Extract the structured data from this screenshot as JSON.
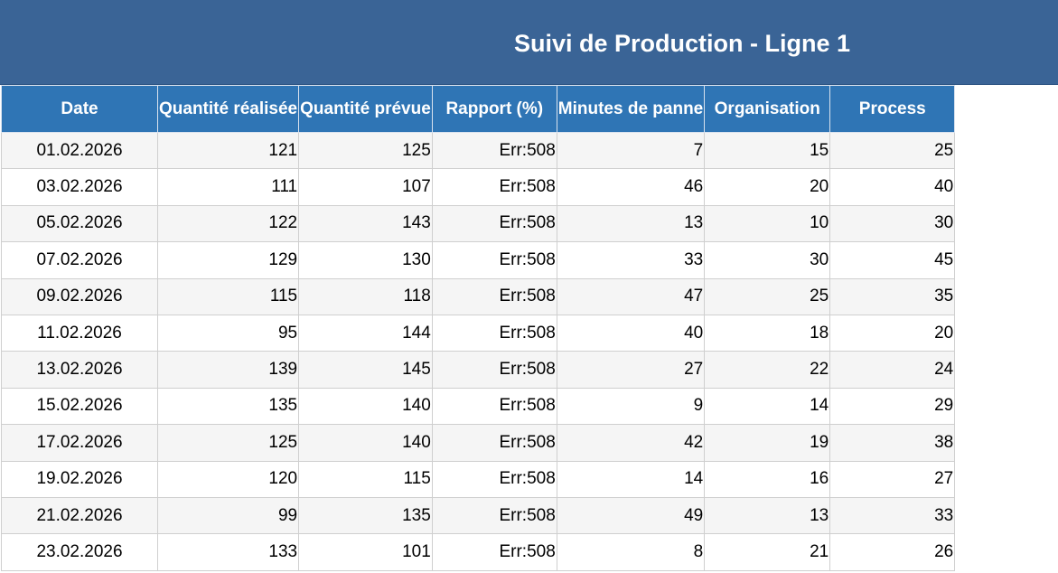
{
  "title": "Suivi de Production - Ligne 1",
  "columns": [
    "Date",
    "Quantité réalisée",
    "Quantité prévue",
    "Rapport (%)",
    "Minutes de panne",
    "Organisation",
    "Process"
  ],
  "rows": [
    [
      "01.02.2026",
      "121",
      "125",
      "Err:508",
      "7",
      "15",
      "25"
    ],
    [
      "03.02.2026",
      "111",
      "107",
      "Err:508",
      "46",
      "20",
      "40"
    ],
    [
      "05.02.2026",
      "122",
      "143",
      "Err:508",
      "13",
      "10",
      "30"
    ],
    [
      "07.02.2026",
      "129",
      "130",
      "Err:508",
      "33",
      "30",
      "45"
    ],
    [
      "09.02.2026",
      "115",
      "118",
      "Err:508",
      "47",
      "25",
      "35"
    ],
    [
      "11.02.2026",
      "95",
      "144",
      "Err:508",
      "40",
      "18",
      "20"
    ],
    [
      "13.02.2026",
      "139",
      "145",
      "Err:508",
      "27",
      "22",
      "24"
    ],
    [
      "15.02.2026",
      "135",
      "140",
      "Err:508",
      "9",
      "14",
      "29"
    ],
    [
      "17.02.2026",
      "125",
      "140",
      "Err:508",
      "42",
      "19",
      "38"
    ],
    [
      "19.02.2026",
      "120",
      "115",
      "Err:508",
      "14",
      "16",
      "27"
    ],
    [
      "21.02.2026",
      "99",
      "135",
      "Err:508",
      "49",
      "13",
      "33"
    ],
    [
      "23.02.2026",
      "133",
      "101",
      "Err:508",
      "8",
      "21",
      "26"
    ]
  ],
  "colors": {
    "title_bg": "#3a6496",
    "header_bg": "#2f75b5",
    "header_text": "#ffffff",
    "row_alt_bg": "#f5f5f5"
  }
}
